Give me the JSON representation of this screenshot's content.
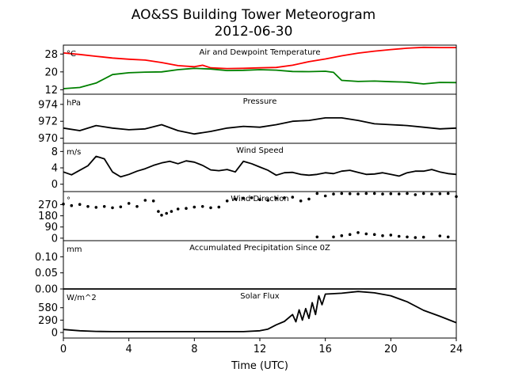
{
  "title_line1": "AO&SS Building Tower Meteorogram",
  "title_line2": "2012-06-30",
  "x_axis": {
    "label": "Time (UTC)",
    "range": [
      0,
      24
    ],
    "ticks": [
      0,
      4,
      8,
      12,
      16,
      20,
      24
    ]
  },
  "chart_data": [
    {
      "type": "line",
      "title": "Air and Dewpoint Temperature",
      "unit": "°C",
      "ylim": [
        10,
        32
      ],
      "yticks": [
        12,
        20,
        28
      ],
      "series": [
        {
          "color": "#ff0000",
          "x": [
            0,
            1,
            2,
            3,
            4,
            5,
            6,
            7,
            8,
            8.5,
            9,
            10,
            11,
            12,
            13,
            14,
            15,
            16,
            17,
            18,
            19,
            20,
            21,
            22,
            23,
            24
          ],
          "y": [
            28.5,
            27.8,
            27.0,
            26.2,
            25.7,
            25.3,
            24.2,
            22.8,
            22.3,
            23.0,
            21.8,
            21.5,
            21.6,
            21.8,
            22.0,
            23.0,
            24.6,
            25.8,
            27.2,
            28.4,
            29.3,
            30.0,
            30.6,
            31.0,
            30.9,
            30.9
          ]
        },
        {
          "color": "#008000",
          "x": [
            0,
            1,
            2,
            3,
            4,
            5,
            6,
            7,
            8,
            9,
            10,
            11,
            12,
            13,
            14,
            15,
            16,
            16.5,
            17,
            18,
            19,
            20,
            21,
            22,
            23,
            24
          ],
          "y": [
            12.5,
            13.0,
            15.0,
            18.8,
            19.6,
            19.9,
            20.0,
            21.0,
            21.6,
            21.3,
            20.6,
            20.7,
            21.0,
            20.8,
            20.2,
            20.1,
            20.3,
            19.8,
            16.2,
            15.7,
            15.9,
            15.6,
            15.4,
            14.6,
            15.3,
            15.2
          ]
        }
      ]
    },
    {
      "type": "line",
      "title": "Pressure",
      "unit": "hPa",
      "ylim": [
        969.4,
        975.2
      ],
      "yticks": [
        970,
        972,
        974
      ],
      "series": [
        {
          "color": "#000000",
          "x": [
            0,
            1,
            2,
            3,
            4,
            5,
            6,
            7,
            8,
            9,
            10,
            11,
            12,
            13,
            14,
            15,
            16,
            17,
            18,
            19,
            20,
            21,
            22,
            23,
            24
          ],
          "y": [
            971.2,
            970.9,
            971.5,
            971.2,
            971.0,
            971.1,
            971.6,
            970.9,
            970.5,
            970.8,
            971.2,
            971.4,
            971.3,
            971.6,
            972.0,
            972.1,
            972.4,
            972.4,
            972.1,
            971.7,
            971.6,
            971.5,
            971.3,
            971.1,
            971.2
          ]
        }
      ]
    },
    {
      "type": "line",
      "title": "Wind Speed",
      "unit": "m/s",
      "ylim": [
        -1.8,
        10
      ],
      "yticks": [
        0,
        4,
        8
      ],
      "series": [
        {
          "color": "#000000",
          "x": [
            0,
            0.5,
            1,
            1.5,
            2,
            2.5,
            3,
            3.5,
            4,
            4.5,
            5,
            5.5,
            6,
            6.5,
            7,
            7.5,
            8,
            8.5,
            9,
            9.5,
            10,
            10.5,
            11,
            11.5,
            12,
            12.5,
            13,
            13.5,
            14,
            14.5,
            15,
            15.5,
            16,
            16.5,
            17,
            17.5,
            18,
            18.5,
            19,
            19.5,
            20,
            20.5,
            21,
            21.5,
            22,
            22.5,
            23,
            23.5,
            24
          ],
          "y": [
            3.0,
            2.3,
            3.4,
            4.5,
            6.8,
            6.2,
            3.0,
            1.8,
            2.4,
            3.2,
            3.8,
            4.6,
            5.2,
            5.6,
            5.0,
            5.7,
            5.4,
            4.6,
            3.5,
            3.3,
            3.6,
            3.0,
            5.6,
            5.0,
            4.2,
            3.4,
            2.2,
            2.8,
            2.9,
            2.4,
            2.2,
            2.4,
            2.8,
            2.6,
            3.2,
            3.4,
            2.9,
            2.4,
            2.5,
            2.8,
            2.4,
            2.0,
            2.8,
            3.2,
            3.2,
            3.6,
            3.0,
            2.6,
            2.4
          ]
        }
      ]
    },
    {
      "type": "scatter",
      "title": "Wind Direction",
      "unit": "°",
      "ylim": [
        -20,
        375
      ],
      "yticks": [
        0,
        90,
        180,
        270
      ],
      "series": [
        {
          "color": "#000000",
          "x": [
            0,
            0.5,
            1,
            1.5,
            2,
            2.5,
            3,
            3.5,
            4,
            4.5,
            5,
            5.5,
            5.8,
            6.0,
            6.3,
            6.6,
            7,
            7.5,
            8,
            8.5,
            9,
            9.5,
            10,
            10.5,
            11,
            11.5,
            12,
            12.5,
            13,
            13.5,
            14,
            14.5,
            15,
            15.5,
            16,
            16.5,
            17,
            17.5,
            18,
            18.5,
            19,
            19.5,
            20,
            20.5,
            21,
            21.5,
            22,
            22.5,
            23,
            23.5,
            24
          ],
          "y": [
            275,
            262,
            272,
            255,
            248,
            255,
            245,
            252,
            280,
            255,
            305,
            300,
            215,
            185,
            200,
            215,
            235,
            240,
            250,
            255,
            245,
            250,
            300,
            315,
            320,
            325,
            310,
            305,
            320,
            325,
            330,
            300,
            315,
            360,
            340,
            355,
            360,
            358,
            356,
            360,
            360,
            355,
            358,
            356,
            360,
            350,
            360,
            355,
            358,
            360,
            335
          ]
        },
        {
          "color": "#000000",
          "x": [
            15.5,
            16.5,
            17,
            17.5,
            18,
            18.5,
            19,
            19.5,
            20,
            20.5,
            21,
            21.5,
            22,
            23,
            23.5
          ],
          "y": [
            10,
            10,
            20,
            30,
            45,
            35,
            30,
            20,
            25,
            15,
            10,
            5,
            8,
            18,
            10
          ]
        }
      ]
    },
    {
      "type": "line",
      "title": "Accumulated Precipitation Since 0Z",
      "unit": "mm",
      "ylim": [
        0,
        0.15
      ],
      "yticks": [
        0.0,
        0.05,
        0.1
      ],
      "series": [
        {
          "color": "#000000",
          "x": [
            0,
            24
          ],
          "y": [
            0,
            0
          ]
        }
      ]
    },
    {
      "type": "line",
      "title": "Solar Flux",
      "unit": "W/m^2",
      "ylim": [
        -130,
        1020
      ],
      "yticks": [
        0,
        290,
        580
      ],
      "series": [
        {
          "color": "#000000",
          "x": [
            0,
            1,
            2,
            3,
            4,
            5,
            6,
            7,
            8,
            9,
            10,
            11,
            12,
            12.5,
            13,
            13.5,
            14,
            14.2,
            14.4,
            14.6,
            14.8,
            15,
            15.2,
            15.4,
            15.6,
            15.8,
            16,
            17,
            18,
            19,
            20,
            21,
            22,
            23,
            24
          ],
          "y": [
            70,
            40,
            25,
            20,
            20,
            20,
            20,
            20,
            20,
            20,
            20,
            20,
            40,
            80,
            180,
            260,
            420,
            250,
            530,
            290,
            560,
            330,
            700,
            420,
            860,
            650,
            900,
            920,
            960,
            930,
            860,
            720,
            520,
            380,
            230
          ]
        }
      ]
    }
  ]
}
